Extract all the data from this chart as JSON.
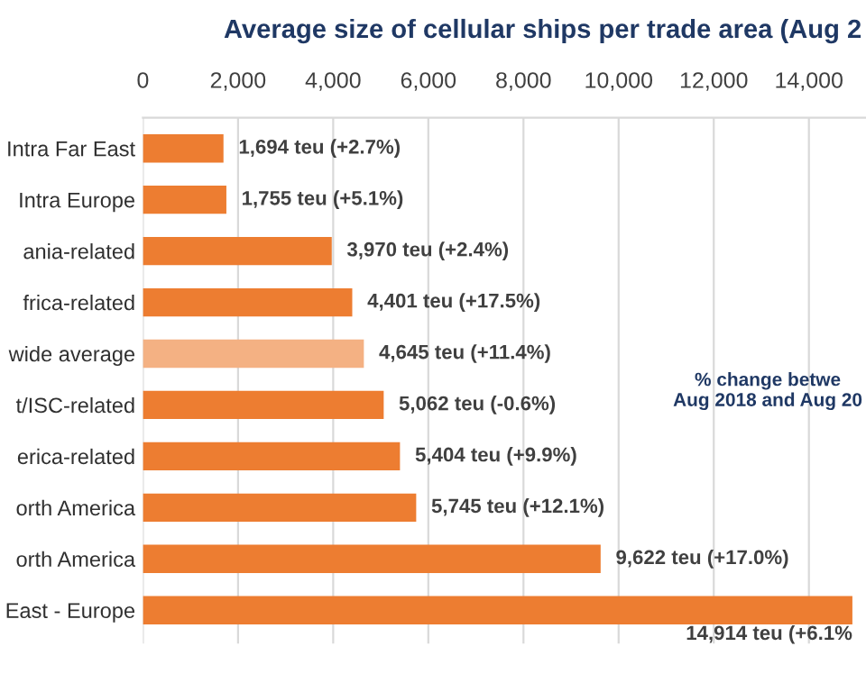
{
  "chart_data": {
    "type": "bar",
    "orientation": "horizontal",
    "title": "Average size of cellular ships per trade area (Aug 2",
    "categories": [
      "Intra Far East",
      "Intra Europe",
      "ania-related",
      "frica-related",
      "wide average",
      "t/ISC-related",
      "erica-related",
      "orth America",
      "orth America",
      "East - Europe"
    ],
    "values": [
      1694,
      1755,
      3970,
      4401,
      4645,
      5062,
      5404,
      5745,
      9622,
      14914
    ],
    "colors": [
      "#ed7d31",
      "#ed7d31",
      "#ed7d31",
      "#ed7d31",
      "#f4b183",
      "#ed7d31",
      "#ed7d31",
      "#ed7d31",
      "#ed7d31",
      "#ed7d31"
    ],
    "value_labels": [
      "1,694 teu (+2.7%)",
      "1,755 teu (+5.1%)",
      "3,970 teu (+2.4%)",
      "4,401 teu (+17.5%)",
      "4,645 teu (+11.4%)",
      "5,062 teu (-0.6%)",
      "5,404 teu (+9.9%)",
      "5,745 teu (+12.1%)",
      "9,622 teu (+17.0%)",
      "14,914 teu (+6.1%"
    ],
    "xlim": [
      0,
      15200
    ],
    "xticks": [
      {
        "value": 0,
        "label": "0"
      },
      {
        "value": 2000,
        "label": "2,000"
      },
      {
        "value": 4000,
        "label": "4,000"
      },
      {
        "value": 6000,
        "label": "6,000"
      },
      {
        "value": 8000,
        "label": "8,000"
      },
      {
        "value": 10000,
        "label": "10,000"
      },
      {
        "value": 12000,
        "label": "12,000"
      },
      {
        "value": 14000,
        "label": "14,000"
      }
    ],
    "grid": "x",
    "annotations": [
      "% change betwe\nAug 2018 and Aug 20"
    ]
  }
}
